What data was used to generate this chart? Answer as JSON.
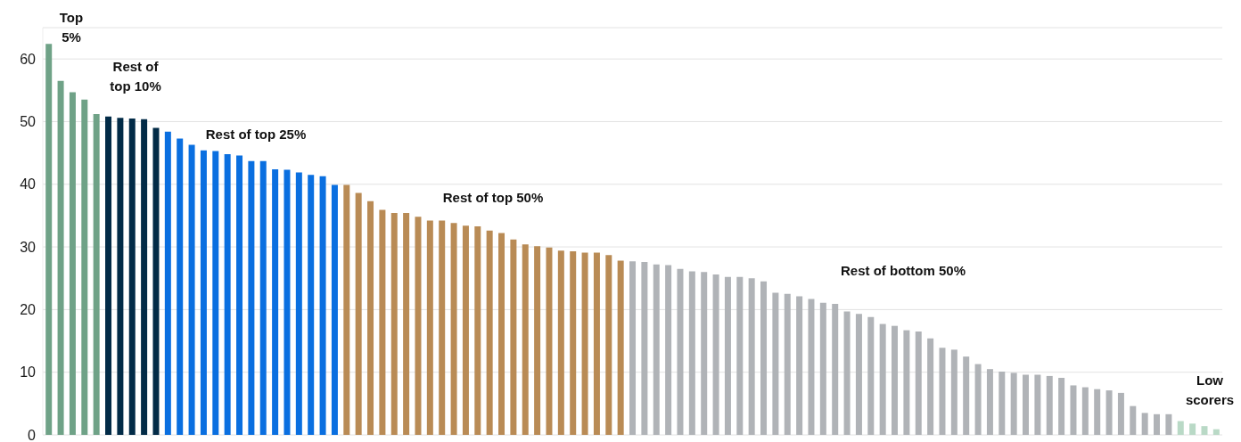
{
  "chart_data": {
    "type": "bar",
    "categories": [
      null,
      null,
      null,
      null,
      null,
      null,
      null,
      null,
      null,
      null,
      null,
      null,
      null,
      null,
      null,
      null,
      null,
      null,
      null,
      null,
      null,
      null,
      null,
      null,
      null,
      null,
      null,
      null,
      null,
      null,
      null,
      null,
      null,
      null,
      null,
      null,
      null,
      null,
      null,
      null,
      null,
      null,
      null,
      null,
      null,
      null,
      null,
      null,
      null,
      null,
      null,
      null,
      null,
      null,
      null,
      null,
      null,
      null,
      null,
      null,
      null,
      null,
      null,
      null,
      null,
      null,
      null,
      null,
      null,
      null,
      null,
      null,
      null,
      null,
      null,
      null,
      null,
      null,
      null,
      null,
      null,
      null,
      null,
      null,
      null,
      null,
      null,
      null,
      null,
      null,
      null,
      null,
      null,
      null,
      null,
      null,
      null,
      null,
      null
    ],
    "values": [
      62.4,
      56.5,
      54.7,
      53.5,
      51.2,
      50.8,
      50.6,
      50.5,
      50.4,
      49.0,
      48.4,
      47.3,
      46.3,
      45.4,
      45.3,
      44.8,
      44.6,
      43.7,
      43.7,
      42.4,
      42.3,
      41.9,
      41.5,
      41.3,
      39.9,
      39.9,
      38.6,
      37.3,
      35.9,
      35.4,
      35.4,
      34.8,
      34.2,
      34.2,
      33.8,
      33.4,
      33.3,
      32.6,
      32.2,
      31.2,
      30.4,
      30.1,
      29.9,
      29.4,
      29.3,
      29.1,
      29.1,
      28.7,
      27.8,
      27.7,
      27.6,
      27.2,
      27.1,
      26.5,
      26.1,
      26.0,
      25.6,
      25.2,
      25.2,
      25.0,
      24.5,
      22.7,
      22.5,
      22.1,
      21.7,
      21.1,
      20.9,
      19.7,
      19.3,
      18.8,
      17.7,
      17.4,
      16.7,
      16.5,
      15.4,
      13.9,
      13.6,
      12.5,
      11.3,
      10.5,
      10.1,
      9.9,
      9.6,
      9.6,
      9.4,
      9.1,
      7.9,
      7.6,
      7.3,
      7.1,
      6.7,
      4.6,
      3.5,
      3.3,
      3.3,
      2.2,
      1.8,
      1.4,
      0.9
    ],
    "colors": [
      "#6fa287",
      "#6fa287",
      "#6fa287",
      "#6fa287",
      "#6fa287",
      "#022b47",
      "#022b47",
      "#022b47",
      "#022b47",
      "#022b47",
      "#0a6fe0",
      "#0a6fe0",
      "#0a6fe0",
      "#0a6fe0",
      "#0a6fe0",
      "#0a6fe0",
      "#0a6fe0",
      "#0a6fe0",
      "#0a6fe0",
      "#0a6fe0",
      "#0a6fe0",
      "#0a6fe0",
      "#0a6fe0",
      "#0a6fe0",
      "#0a6fe0",
      "#b98b55",
      "#b98b55",
      "#b98b55",
      "#b98b55",
      "#b98b55",
      "#b98b55",
      "#b98b55",
      "#b98b55",
      "#b98b55",
      "#b98b55",
      "#b98b55",
      "#b98b55",
      "#b98b55",
      "#b98b55",
      "#b98b55",
      "#b98b55",
      "#b98b55",
      "#b98b55",
      "#b98b55",
      "#b98b55",
      "#b98b55",
      "#b98b55",
      "#b98b55",
      "#b98b55",
      "#b0b3b7",
      "#b0b3b7",
      "#b0b3b7",
      "#b0b3b7",
      "#b0b3b7",
      "#b0b3b7",
      "#b0b3b7",
      "#b0b3b7",
      "#b0b3b7",
      "#b0b3b7",
      "#b0b3b7",
      "#b0b3b7",
      "#b0b3b7",
      "#b0b3b7",
      "#b0b3b7",
      "#b0b3b7",
      "#b0b3b7",
      "#b0b3b7",
      "#b0b3b7",
      "#b0b3b7",
      "#b0b3b7",
      "#b0b3b7",
      "#b0b3b7",
      "#b0b3b7",
      "#b0b3b7",
      "#b0b3b7",
      "#b0b3b7",
      "#b0b3b7",
      "#b0b3b7",
      "#b0b3b7",
      "#b0b3b7",
      "#b0b3b7",
      "#b0b3b7",
      "#b0b3b7",
      "#b0b3b7",
      "#b0b3b7",
      "#b0b3b7",
      "#b0b3b7",
      "#b0b3b7",
      "#b0b3b7",
      "#b0b3b7",
      "#b0b3b7",
      "#b0b3b7",
      "#b0b3b7",
      "#b0b3b7",
      "#b0b3b7",
      "#b9d9c6",
      "#b9d9c6",
      "#b9d9c6",
      "#b9d9c6"
    ],
    "ylim": [
      0,
      65
    ],
    "yticks": [
      0,
      10,
      20,
      30,
      40,
      50,
      60
    ],
    "grid": "y",
    "legend": false,
    "annotations": [
      "Top 5%",
      "Rest of top 10%",
      "Rest of top 25%",
      "Rest of top 50%",
      "Rest of bottom 50%",
      "Low scorers"
    ]
  }
}
